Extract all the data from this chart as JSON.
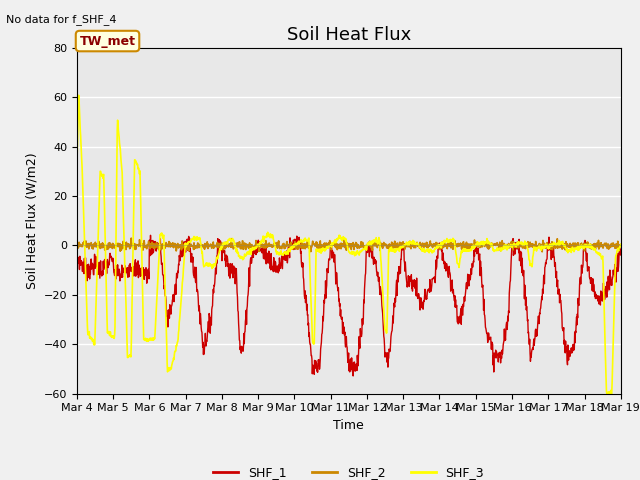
{
  "title": "Soil Heat Flux",
  "subtitle": "No data for f_SHF_4",
  "ylabel": "Soil Heat Flux (W/m2)",
  "xlabel": "Time",
  "ylim": [
    -60,
    80
  ],
  "yticks": [
    -60,
    -40,
    -20,
    0,
    20,
    40,
    60,
    80
  ],
  "xtick_labels": [
    "Mar 4",
    "Mar 5",
    "Mar 6",
    "Mar 7",
    "Mar 8",
    "Mar 9",
    "Mar 10",
    "Mar 11",
    "Mar 12",
    "Mar 13",
    "Mar 14",
    "Mar 15",
    "Mar 16",
    "Mar 17",
    "Mar 18",
    "Mar 19"
  ],
  "legend_labels": [
    "SHF_1",
    "SHF_2",
    "SHF_3"
  ],
  "shf1_color": "#cc0000",
  "shf2_color": "#cc8800",
  "shf3_color": "#ffff00",
  "annotation_text": "TW_met",
  "plot_bg_color": "#e8e8e8",
  "fig_bg_color": "#f0f0f0",
  "grid_color": "#ffffff",
  "title_fontsize": 13,
  "label_fontsize": 9,
  "tick_fontsize": 8
}
